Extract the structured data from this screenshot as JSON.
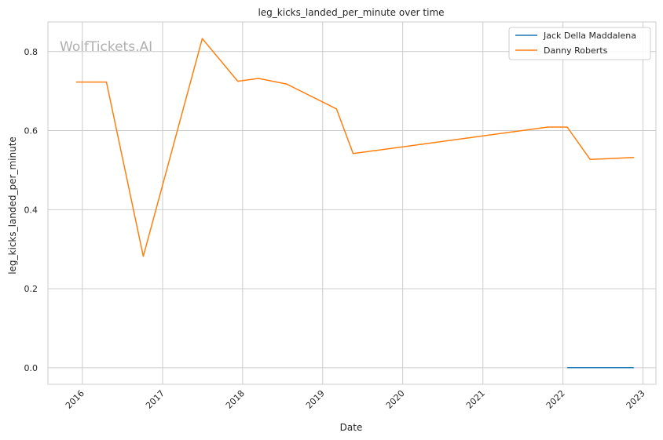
{
  "chart_data": {
    "type": "line",
    "title": "leg_kicks_landed_per_minute over time",
    "xlabel": "Date",
    "ylabel": "leg_kicks_landed_per_minute",
    "watermark": "WolfTickets.AI",
    "x_ticks": [
      "2016",
      "2017",
      "2018",
      "2019",
      "2020",
      "2021",
      "2022",
      "2023"
    ],
    "y_ticks": [
      "0.0",
      "0.2",
      "0.4",
      "0.6",
      "0.8"
    ],
    "xlim": [
      "2015-07-28",
      "2023-03-01"
    ],
    "ylim": [
      -0.042,
      0.875
    ],
    "grid": true,
    "legend_position": "top-right",
    "series": [
      {
        "name": "Jack Della Maddalena",
        "color": "#1f77b4",
        "points": [
          {
            "date": "2022-01-22",
            "value": 0.0
          },
          {
            "date": "2022-11-19",
            "value": 0.0
          }
        ]
      },
      {
        "name": "Danny Roberts",
        "color": "#ff7f0e",
        "points": [
          {
            "date": "2015-12-05",
            "value": 0.723
          },
          {
            "date": "2016-04-20",
            "value": 0.723
          },
          {
            "date": "2016-10-05",
            "value": 0.282
          },
          {
            "date": "2017-07-01",
            "value": 0.833
          },
          {
            "date": "2017-12-10",
            "value": 0.725
          },
          {
            "date": "2018-03-15",
            "value": 0.732
          },
          {
            "date": "2018-07-20",
            "value": 0.718
          },
          {
            "date": "2019-03-05",
            "value": 0.655
          },
          {
            "date": "2019-05-20",
            "value": 0.542
          },
          {
            "date": "2021-10-25",
            "value": 0.609
          },
          {
            "date": "2022-01-20",
            "value": 0.609
          },
          {
            "date": "2022-05-05",
            "value": 0.527
          },
          {
            "date": "2022-11-20",
            "value": 0.532
          }
        ]
      }
    ]
  }
}
